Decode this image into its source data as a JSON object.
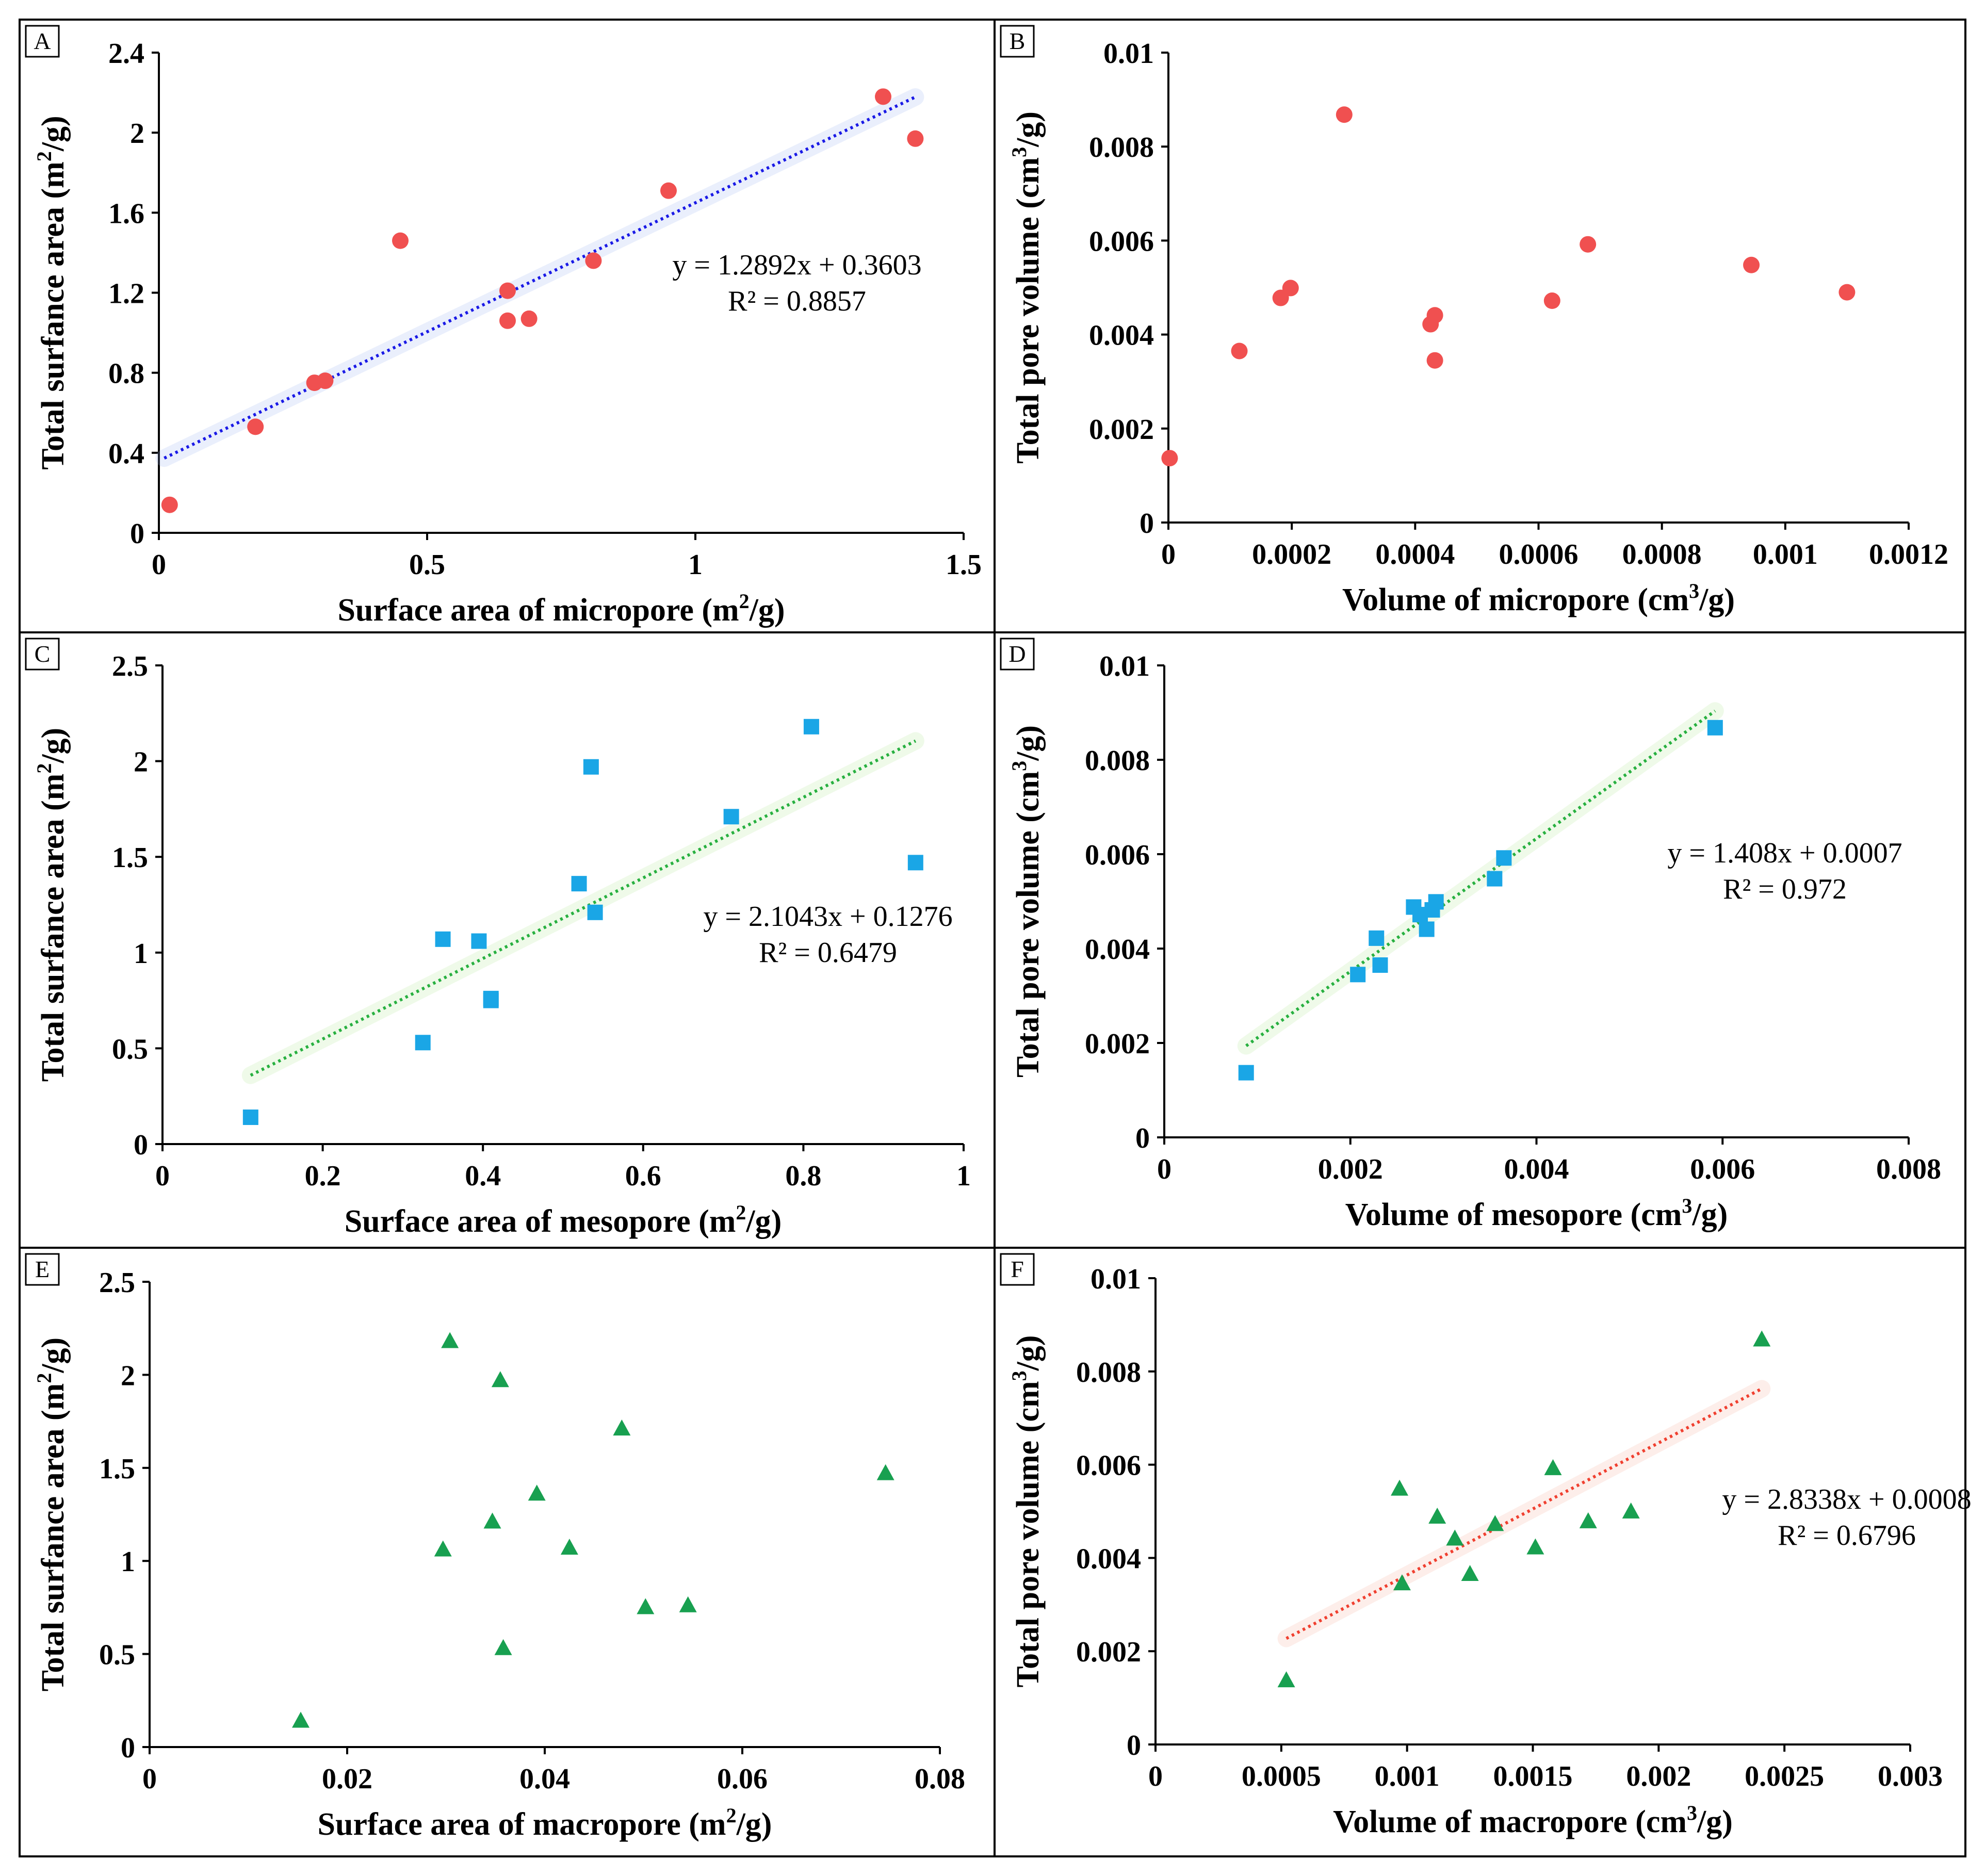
{
  "colors": {
    "circle": "#f05050",
    "square": "#1aa6e6",
    "triangle": "#18a050",
    "trend_blue": "#1a1ae6",
    "trend_green": "#28b040",
    "trend_red": "#f04030",
    "glow_blue": "#9fb8f0",
    "glow_green": "#b8e89c",
    "glow_red": "#f6b0a0"
  },
  "chart_data": [
    {
      "panel": "A",
      "type": "scatter",
      "marker": "circle",
      "xlabel": "Surface area of micropore",
      "xunit": "m",
      "xunit_sup": "2",
      "xunit_tail": "/g",
      "ylabel": "Total surfance area",
      "yunit": "m",
      "yunit_sup": "2",
      "yunit_tail": "/g",
      "xlim": [
        0,
        1.5
      ],
      "ylim": [
        0,
        2.4
      ],
      "xticks": [
        0,
        0.5,
        1,
        1.5
      ],
      "xtick_labels": [
        "0",
        "0.5",
        "1",
        "1.5"
      ],
      "yticks": [
        0,
        0.4,
        0.8,
        1.2,
        1.6,
        2,
        2.4
      ],
      "ytick_labels": [
        "0",
        "0.4",
        "0.8",
        "1.2",
        "1.6",
        "2",
        "2.4"
      ],
      "x": [
        0.02,
        0.18,
        0.29,
        0.31,
        0.45,
        0.65,
        0.65,
        0.69,
        0.81,
        0.95,
        1.35,
        1.41
      ],
      "y": [
        0.14,
        0.53,
        0.75,
        0.76,
        1.46,
        1.21,
        1.06,
        1.07,
        1.36,
        1.71,
        2.18,
        1.97
      ],
      "trend": {
        "slope": 1.2892,
        "intercept": 0.3603,
        "x_range": [
          0.01,
          1.41
        ],
        "line_color": "trend_blue",
        "glow_color": "glow_blue"
      },
      "equation": "y = 1.2892x + 0.3603",
      "r2_label": "R² = 0.8857"
    },
    {
      "panel": "B",
      "type": "scatter",
      "marker": "circle",
      "xlabel": "Volume of micropore",
      "xunit": "cm",
      "xunit_sup": "3",
      "xunit_tail": "/g",
      "ylabel": "Total pore volume",
      "yunit": "cm",
      "yunit_sup": "3",
      "yunit_tail": "/g",
      "xlim": [
        0,
        0.0012
      ],
      "ylim": [
        0,
        0.01
      ],
      "xticks": [
        0,
        0.0002,
        0.0004,
        0.0006,
        0.0008,
        0.001,
        0.0012
      ],
      "xtick_labels": [
        "0",
        "0.0002",
        "0.0004",
        "0.0006",
        "0.0008",
        "0.001",
        "0.0012"
      ],
      "yticks": [
        0,
        0.002,
        0.004,
        0.006,
        0.008,
        0.01
      ],
      "ytick_labels": [
        "0",
        "0.002",
        "0.004",
        "0.006",
        "0.008",
        "0.01"
      ],
      "x": [
        2e-06,
        0.000115,
        0.000182,
        0.000198,
        0.000285,
        0.000425,
        0.000432,
        0.000432,
        0.000622,
        0.00068,
        0.000945,
        0.0011
      ],
      "y": [
        0.00137,
        0.00365,
        0.00478,
        0.00499,
        0.00868,
        0.00422,
        0.00441,
        0.00345,
        0.00472,
        0.00592,
        0.00548,
        0.0049
      ],
      "equation": "",
      "r2_label": ""
    },
    {
      "panel": "C",
      "type": "scatter",
      "marker": "square",
      "xlabel": "Surface area of mesopore",
      "xunit": "m",
      "xunit_sup": "2",
      "xunit_tail": "/g",
      "ylabel": "Total surfance area",
      "yunit": "m",
      "yunit_sup": "2",
      "yunit_tail": "/g",
      "xlim": [
        0,
        1
      ],
      "ylim": [
        0,
        2.5
      ],
      "xticks": [
        0,
        0.2,
        0.4,
        0.6,
        0.8,
        1
      ],
      "xtick_labels": [
        "0",
        "0.2",
        "0.4",
        "0.6",
        "0.8",
        "1"
      ],
      "yticks": [
        0,
        0.5,
        1,
        1.5,
        2,
        2.5
      ],
      "ytick_labels": [
        "0",
        "0.5",
        "1",
        "1.5",
        "2",
        "2.5"
      ],
      "x": [
        0.11,
        0.325,
        0.35,
        0.395,
        0.41,
        0.41,
        0.52,
        0.535,
        0.54,
        0.71,
        0.81,
        0.94
      ],
      "y": [
        0.14,
        0.53,
        1.07,
        1.06,
        0.76,
        0.75,
        1.36,
        1.97,
        1.21,
        1.71,
        2.18,
        1.47
      ],
      "trend": {
        "slope": 2.1043,
        "intercept": 0.1276,
        "x_range": [
          0.11,
          0.94
        ],
        "line_color": "trend_green",
        "glow_color": "glow_green"
      },
      "equation": "y = 2.1043x + 0.1276",
      "r2_label": "R² = 0.6479"
    },
    {
      "panel": "D",
      "type": "scatter",
      "marker": "square",
      "xlabel": "Volume of mesopore",
      "xunit": "cm",
      "xunit_sup": "3",
      "xunit_tail": "/g",
      "ylabel": "Total pore volume",
      "yunit": "cm",
      "yunit_sup": "3",
      "yunit_tail": "/g",
      "xlim": [
        0,
        0.008
      ],
      "ylim": [
        0,
        0.01
      ],
      "xticks": [
        0,
        0.002,
        0.004,
        0.006,
        0.008
      ],
      "xtick_labels": [
        "0",
        "0.002",
        "0.004",
        "0.006",
        "0.008"
      ],
      "yticks": [
        0,
        0.002,
        0.004,
        0.006,
        0.008,
        0.01
      ],
      "ytick_labels": [
        "0",
        "0.002",
        "0.004",
        "0.006",
        "0.008",
        "0.01"
      ],
      "x": [
        0.00088,
        0.00208,
        0.00232,
        0.00228,
        0.00268,
        0.00275,
        0.00282,
        0.00288,
        0.00292,
        0.00355,
        0.00365,
        0.00592
      ],
      "y": [
        0.00137,
        0.00345,
        0.00365,
        0.00422,
        0.00488,
        0.00472,
        0.00441,
        0.00482,
        0.00499,
        0.00548,
        0.00592,
        0.00868
      ],
      "trend": {
        "slope": 1.408,
        "intercept": 0.0007,
        "x_range": [
          0.00088,
          0.00592
        ],
        "line_color": "trend_green",
        "glow_color": "glow_green"
      },
      "equation": "y = 1.408x + 0.0007",
      "r2_label": "R² = 0.972"
    },
    {
      "panel": "E",
      "type": "scatter",
      "marker": "triangle",
      "xlabel": "Surface area of macropore",
      "xunit": "m",
      "xunit_sup": "2",
      "xunit_tail": "/g",
      "ylabel": "Total surfance area",
      "yunit": "m",
      "yunit_sup": "2",
      "yunit_tail": "/g",
      "xlim": [
        0,
        0.08
      ],
      "ylim": [
        0,
        2.5
      ],
      "xticks": [
        0,
        0.02,
        0.04,
        0.06,
        0.08
      ],
      "xtick_labels": [
        "0",
        "0.02",
        "0.04",
        "0.06",
        "0.08"
      ],
      "yticks": [
        0,
        0.5,
        1,
        1.5,
        2,
        2.5
      ],
      "ytick_labels": [
        "0",
        "0.5",
        "1",
        "1.5",
        "2",
        "2.5"
      ],
      "x": [
        0.0153,
        0.0297,
        0.0304,
        0.0347,
        0.0355,
        0.0358,
        0.0392,
        0.0425,
        0.0478,
        0.0502,
        0.0545,
        0.0745
      ],
      "y": [
        0.14,
        1.06,
        2.18,
        1.21,
        1.97,
        0.53,
        1.36,
        1.07,
        1.71,
        0.75,
        0.76,
        1.47
      ],
      "equation": "",
      "r2_label": ""
    },
    {
      "panel": "F",
      "type": "scatter",
      "marker": "triangle",
      "xlabel": "Volume of macropore",
      "xunit": "cm",
      "xunit_sup": "3",
      "xunit_tail": "/g",
      "ylabel": "Total pore volume",
      "yunit": "cm",
      "yunit_sup": "3",
      "yunit_tail": "/g",
      "xlim": [
        0,
        0.003
      ],
      "ylim": [
        0,
        0.01
      ],
      "xticks": [
        0,
        0.0005,
        0.001,
        0.0015,
        0.002,
        0.0025,
        0.003
      ],
      "xtick_labels": [
        "0",
        "0.0005",
        "0.001",
        "0.0015",
        "0.002",
        "0.0025",
        "0.003"
      ],
      "yticks": [
        0,
        0.002,
        0.004,
        0.006,
        0.008,
        0.01
      ],
      "ytick_labels": [
        "0",
        "0.002",
        "0.004",
        "0.006",
        "0.008",
        "0.01"
      ],
      "x": [
        0.00052,
        0.00097,
        0.00098,
        0.00112,
        0.00119,
        0.00125,
        0.00135,
        0.00151,
        0.00158,
        0.00172,
        0.00189,
        0.00241
      ],
      "y": [
        0.00137,
        0.00548,
        0.00345,
        0.00488,
        0.00441,
        0.00365,
        0.00472,
        0.00422,
        0.00592,
        0.00478,
        0.00499,
        0.00868
      ],
      "trend": {
        "slope": 2.8338,
        "intercept": 0.0008,
        "x_range": [
          0.00052,
          0.00241
        ],
        "line_color": "trend_red",
        "glow_color": "glow_red"
      },
      "equation": "y = 2.8338x + 0.0008",
      "r2_label": "R² = 0.6796"
    }
  ]
}
